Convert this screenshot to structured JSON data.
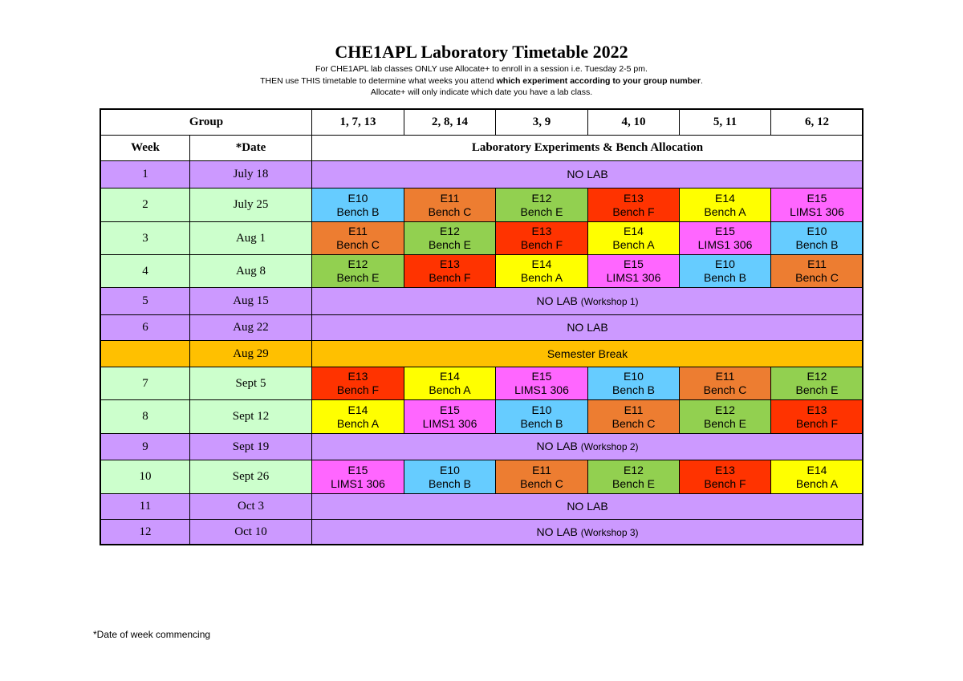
{
  "header": {
    "title": "CHE1APL Laboratory Timetable 2022",
    "note_line1": "For CHE1APL lab classes ONLY use Allocate+ to enroll in a session i.e. Tuesday 2-5 pm.",
    "note_line2_start": "THEN use THIS timetable to determine what weeks you attend ",
    "note_line2_bold": "which experiment according to your group number",
    "note_line2_end": ".",
    "note_line3": "Allocate+ will only indicate which date you have a lab class."
  },
  "table": {
    "group_label": "Group",
    "groups": [
      "1, 7, 13",
      "2, 8, 14",
      "3, 9",
      "4, 10",
      "5, 11",
      "6, 12"
    ],
    "week_label": "Week",
    "date_label": "*Date",
    "allocation_label": "Laboratory Experiments & Bench Allocation",
    "experiment_colors": {
      "E10": "#66ccff",
      "E11": "#ed7d31",
      "E12": "#92d050",
      "E13": "#ff3300",
      "E14": "#ffff00",
      "E15": "#ff66ff"
    },
    "rows": [
      {
        "week": "1",
        "date": "July 18",
        "note": "NO LAB"
      },
      {
        "week": "2",
        "date": "July 25",
        "cells": [
          {
            "experiment": "E10",
            "bench": "Bench B"
          },
          {
            "experiment": "E11",
            "bench": "Bench C"
          },
          {
            "experiment": "E12",
            "bench": "Bench E"
          },
          {
            "experiment": "E13",
            "bench": "Bench F"
          },
          {
            "experiment": "E14",
            "bench": "Bench A"
          },
          {
            "experiment": "E15",
            "bench": "LIMS1 306"
          }
        ]
      },
      {
        "week": "3",
        "date": "Aug 1",
        "cells": [
          {
            "experiment": "E11",
            "bench": "Bench C"
          },
          {
            "experiment": "E12",
            "bench": "Bench E"
          },
          {
            "experiment": "E13",
            "bench": "Bench F"
          },
          {
            "experiment": "E14",
            "bench": "Bench A"
          },
          {
            "experiment": "E15",
            "bench": "LIMS1 306"
          },
          {
            "experiment": "E10",
            "bench": "Bench B"
          }
        ]
      },
      {
        "week": "4",
        "date": "Aug 8",
        "cells": [
          {
            "experiment": "E12",
            "bench": "Bench E"
          },
          {
            "experiment": "E13",
            "bench": "Bench F"
          },
          {
            "experiment": "E14",
            "bench": "Bench A"
          },
          {
            "experiment": "E15",
            "bench": "LIMS1 306"
          },
          {
            "experiment": "E10",
            "bench": "Bench B"
          },
          {
            "experiment": "E11",
            "bench": "Bench C"
          }
        ]
      },
      {
        "week": "5",
        "date": "Aug 15",
        "note": "NO LAB",
        "detail": "(Workshop 1)"
      },
      {
        "week": "6",
        "date": "Aug 22",
        "note": "NO LAB"
      },
      {
        "date": "Aug 29",
        "break": "Semester Break"
      },
      {
        "week": "7",
        "date": "Sept 5",
        "cells": [
          {
            "experiment": "E13",
            "bench": "Bench F"
          },
          {
            "experiment": "E14",
            "bench": "Bench A"
          },
          {
            "experiment": "E15",
            "bench": "LIMS1 306"
          },
          {
            "experiment": "E10",
            "bench": "Bench B"
          },
          {
            "experiment": "E11",
            "bench": "Bench C"
          },
          {
            "experiment": "E12",
            "bench": "Bench E"
          }
        ]
      },
      {
        "week": "8",
        "date": "Sept 12",
        "cells": [
          {
            "experiment": "E14",
            "bench": "Bench A"
          },
          {
            "experiment": "E15",
            "bench": "LIMS1 306"
          },
          {
            "experiment": "E10",
            "bench": "Bench B"
          },
          {
            "experiment": "E11",
            "bench": "Bench C"
          },
          {
            "experiment": "E12",
            "bench": "Bench E"
          },
          {
            "experiment": "E13",
            "bench": "Bench F"
          }
        ]
      },
      {
        "week": "9",
        "date": "Sept 19",
        "note": "NO LAB",
        "detail": "(Workshop 2)"
      },
      {
        "week": "10",
        "date": "Sept 26",
        "cells": [
          {
            "experiment": "E15",
            "bench": "LIMS1 306"
          },
          {
            "experiment": "E10",
            "bench": "Bench B"
          },
          {
            "experiment": "E11",
            "bench": "Bench C"
          },
          {
            "experiment": "E12",
            "bench": "Bench E"
          },
          {
            "experiment": "E13",
            "bench": "Bench F"
          },
          {
            "experiment": "E14",
            "bench": "Bench A"
          }
        ]
      },
      {
        "week": "11",
        "date": "Oct 3",
        "note": "NO LAB"
      },
      {
        "week": "12",
        "date": "Oct 10",
        "note": "NO LAB",
        "detail": "(Workshop 3)"
      }
    ]
  },
  "footnote": "*Date of week commencing"
}
